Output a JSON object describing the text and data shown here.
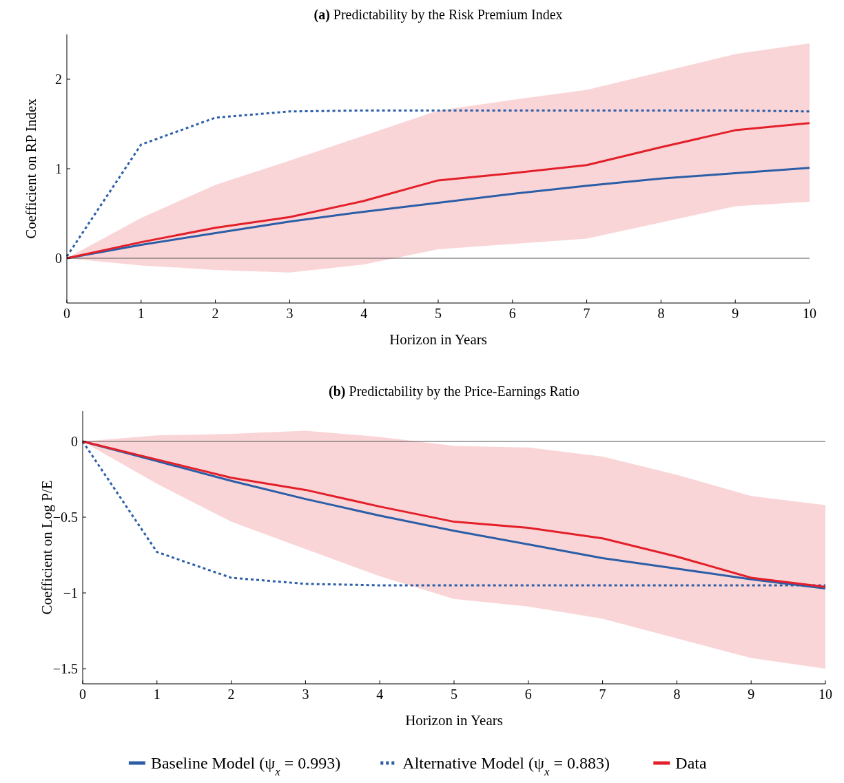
{
  "chart_data": [
    {
      "type": "line",
      "title": "(a) Predictability by the Risk Premium Index",
      "xlabel": "Horizon in Years",
      "ylabel": "Coefficient on RP Index",
      "x": [
        0,
        1,
        2,
        3,
        4,
        5,
        6,
        7,
        8,
        9,
        10
      ],
      "xlim": [
        0,
        10
      ],
      "xticks": [
        0,
        1,
        2,
        3,
        4,
        5,
        6,
        7,
        8,
        9,
        10
      ],
      "ylim": [
        -0.5,
        2.5
      ],
      "yticks": [
        0,
        1,
        2
      ],
      "grid": false,
      "legend": false,
      "ref_lines": [
        {
          "axis": "y",
          "value": 0,
          "color": "#555555"
        }
      ],
      "series": [
        {
          "color": "#2b5ea7",
          "line_style": "solid",
          "values": [
            0,
            0.15,
            0.28,
            0.41,
            0.52,
            0.62,
            0.72,
            0.81,
            0.89,
            0.95,
            1.01
          ]
        },
        {
          "color": "#2b5ea7",
          "line_style": "dotted",
          "values": [
            0.02,
            1.27,
            1.57,
            1.64,
            1.65,
            1.65,
            1.65,
            1.65,
            1.65,
            1.65,
            1.64
          ]
        },
        {
          "color": "#e3202a",
          "line_style": "solid",
          "values": [
            0,
            0.18,
            0.34,
            0.46,
            0.64,
            0.87,
            0.95,
            1.04,
            1.24,
            1.43,
            1.51
          ],
          "lower": [
            0,
            -0.08,
            -0.13,
            -0.16,
            -0.07,
            0.1,
            0.16,
            0.22,
            0.4,
            0.58,
            0.63
          ],
          "upper": [
            0,
            0.45,
            0.82,
            1.09,
            1.37,
            1.65,
            1.77,
            1.88,
            2.08,
            2.28,
            2.4
          ]
        }
      ]
    },
    {
      "type": "line",
      "title": "(b) Predictability by the Price-Earnings Ratio",
      "xlabel": "Horizon in Years",
      "ylabel": "Coefficient on Log P/E",
      "x": [
        0,
        1,
        2,
        3,
        4,
        5,
        6,
        7,
        8,
        9,
        10
      ],
      "xlim": [
        0,
        10
      ],
      "xticks": [
        0,
        1,
        2,
        3,
        4,
        5,
        6,
        7,
        8,
        9,
        10
      ],
      "ylim": [
        -1.6,
        0.2
      ],
      "yticks": [
        0,
        {
          "value": -0.5,
          "label": "−0.5"
        },
        {
          "value": -1,
          "label": "−1"
        },
        {
          "value": -1.5,
          "label": "−1.5"
        }
      ],
      "grid": false,
      "legend": "bottom",
      "ref_lines": [
        {
          "axis": "y",
          "value": 0,
          "color": "#555555"
        }
      ],
      "series": [
        {
          "name": "Baseline Model (ψ$_{x}$ = 0.993)",
          "color": "#2b5ea7",
          "line_style": "solid",
          "values": [
            0,
            -0.13,
            -0.26,
            -0.38,
            -0.49,
            -0.59,
            -0.68,
            -0.77,
            -0.84,
            -0.91,
            -0.97
          ]
        },
        {
          "name": "Alternative Model (ψ$_{x}$ = 0.883)",
          "color": "#2b5ea7",
          "line_style": "dotted",
          "values": [
            0,
            -0.73,
            -0.9,
            -0.94,
            -0.95,
            -0.95,
            -0.95,
            -0.95,
            -0.95,
            -0.95,
            -0.95
          ]
        },
        {
          "name": "Data",
          "color": "#e3202a",
          "line_style": "solid",
          "values": [
            0,
            -0.12,
            -0.24,
            -0.32,
            -0.43,
            -0.53,
            -0.57,
            -0.64,
            -0.76,
            -0.9,
            -0.96
          ],
          "lower": [
            0,
            -0.28,
            -0.53,
            -0.71,
            -0.89,
            -1.04,
            -1.09,
            -1.17,
            -1.3,
            -1.43,
            -1.5
          ],
          "upper": [
            0,
            0.04,
            0.05,
            0.07,
            0.03,
            -0.03,
            -0.04,
            -0.1,
            -0.22,
            -0.36,
            -0.42
          ]
        }
      ]
    }
  ]
}
